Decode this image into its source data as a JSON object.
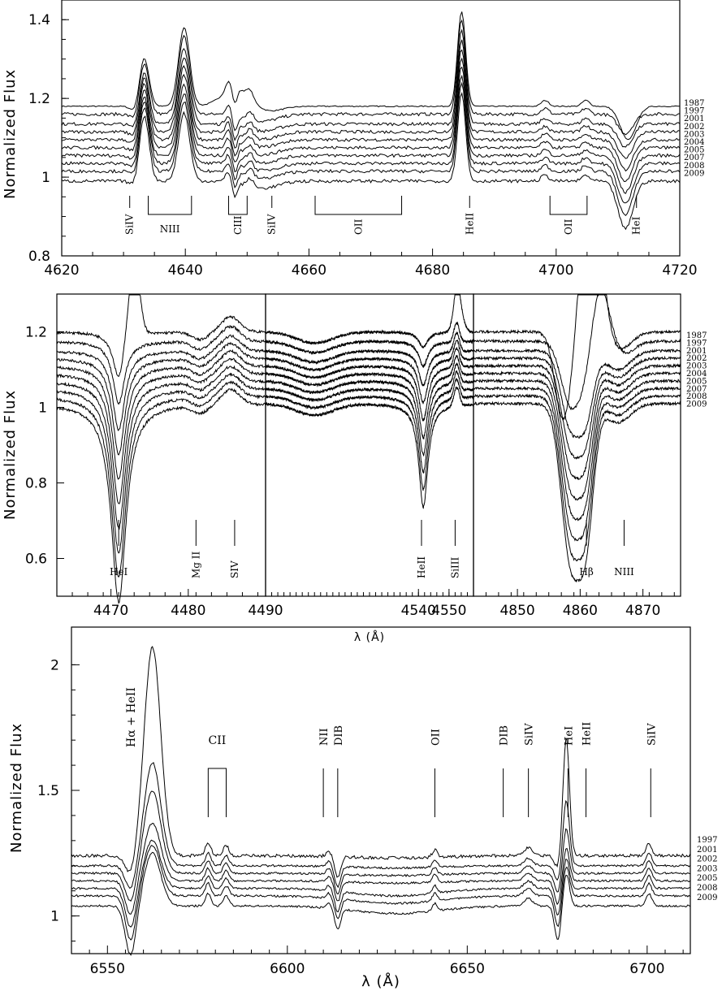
{
  "chart_data": [
    {
      "type": "line",
      "xlabel": "",
      "ylabel": "Normalized Flux",
      "xlim": [
        4620,
        4720
      ],
      "ylim": [
        0.8,
        1.45
      ],
      "xticks": [
        4620,
        4640,
        4660,
        4680,
        4700,
        4720
      ],
      "yticks": [
        0.8,
        1,
        1.2,
        1.4
      ],
      "ytick_labels": [
        "0.8",
        "1",
        "1.2",
        "1.4"
      ],
      "series_names": [
        "1987",
        "1997",
        "2001",
        "2002",
        "2003",
        "2004",
        "2005",
        "2007",
        "2008",
        "2009"
      ],
      "continuum": [
        1.18,
        1.16,
        1.135,
        1.115,
        1.095,
        1.075,
        1.055,
        1.035,
        1.015,
        0.99
      ],
      "lines": [
        {
          "label": "SiIV",
          "wl": [
            4631
          ]
        },
        {
          "label": "NIII",
          "wl": [
            4634,
            4641
          ]
        },
        {
          "label": "CIII",
          "wl": [
            4647,
            4650
          ]
        },
        {
          "label": "SiIV",
          "wl": [
            4654
          ]
        },
        {
          "label": "OII",
          "wl": [
            4661,
            4675
          ]
        },
        {
          "label": "HeII",
          "wl": [
            4686
          ]
        },
        {
          "label": "OII",
          "wl": [
            4699,
            4705
          ]
        },
        {
          "label": "HeI",
          "wl": [
            4713
          ]
        }
      ]
    },
    {
      "type": "line",
      "panels": [
        {
          "xlim": [
            4463,
            4490
          ],
          "xticks": [
            4470,
            4480,
            4490
          ],
          "lines": [
            {
              "label": "HeI",
              "wl": [
                4471
              ]
            },
            {
              "label": "Mg II",
              "wl": [
                4481
              ]
            },
            {
              "label": "SIV",
              "wl": [
                4486
              ]
            }
          ]
        },
        {
          "xlim": [
            4490,
            4558
          ],
          "xticks": [
            4500,
            4520,
            4540,
            4550
          ],
          "lines": [
            {
              "label": "HeII",
              "wl": [
                4541
              ]
            },
            {
              "label": "SiIII",
              "wl": [
                4552
              ]
            }
          ]
        },
        {
          "xlim": [
            4843,
            4876
          ],
          "xticks": [
            4850,
            4860,
            4870
          ],
          "lines": [
            {
              "label": "Hβ",
              "wl": [
                4861
              ]
            },
            {
              "label": "NIII",
              "wl": [
                4867
              ]
            }
          ]
        }
      ],
      "xtick_labels": [
        "4470",
        "4480",
        "4490",
        "4540",
        "4550",
        "4850",
        "4860",
        "4870"
      ],
      "xlabel": "λ (Å)",
      "ylabel": "Normalized Flux",
      "ylim": [
        0.5,
        1.3
      ],
      "yticks": [
        0.6,
        0.8,
        1,
        1.2
      ],
      "ytick_labels": [
        "0.6",
        "0.8",
        "1",
        "1.2"
      ],
      "series_names": [
        "1987",
        "1997",
        "2001",
        "2002",
        "2003",
        "2004",
        "2005",
        "2007",
        "2008",
        "2009"
      ]
    },
    {
      "type": "line",
      "xlabel": "λ (Å)",
      "ylabel": "Normalized Flux",
      "xlim": [
        6540,
        6712
      ],
      "ylim": [
        0.85,
        2.15
      ],
      "xticks": [
        6550,
        6600,
        6650,
        6700
      ],
      "yticks": [
        1,
        1.5,
        2
      ],
      "ytick_labels": [
        "1",
        "1.5",
        "2"
      ],
      "series_names": [
        "1997",
        "2001",
        "2002",
        "2003",
        "2005",
        "2008",
        "2009"
      ],
      "continuum": [
        1.24,
        1.2,
        1.17,
        1.14,
        1.11,
        1.08,
        1.04
      ],
      "halpha_peaks": [
        2.07,
        1.61,
        1.5,
        1.37,
        1.3,
        1.28,
        1.25
      ],
      "hei_peaks": [
        1.71,
        1.46,
        1.35,
        1.27,
        1.23,
        1.2,
        1.17
      ],
      "lines": [
        {
          "label": "Hα + HeII",
          "wl": [
            6563
          ]
        },
        {
          "label": "CII",
          "wl": [
            6578,
            6583
          ]
        },
        {
          "label": "NII",
          "wl": [
            6610
          ]
        },
        {
          "label": "DIB",
          "wl": [
            6614
          ]
        },
        {
          "label": "OII",
          "wl": [
            6641
          ]
        },
        {
          "label": "DIB",
          "wl": [
            6660
          ]
        },
        {
          "label": "SiIV",
          "wl": [
            6667
          ]
        },
        {
          "label": "HeI",
          "wl": [
            6678
          ]
        },
        {
          "label": "HeII",
          "wl": [
            6683
          ]
        },
        {
          "label": "SiIV",
          "wl": [
            6701
          ]
        }
      ]
    }
  ]
}
